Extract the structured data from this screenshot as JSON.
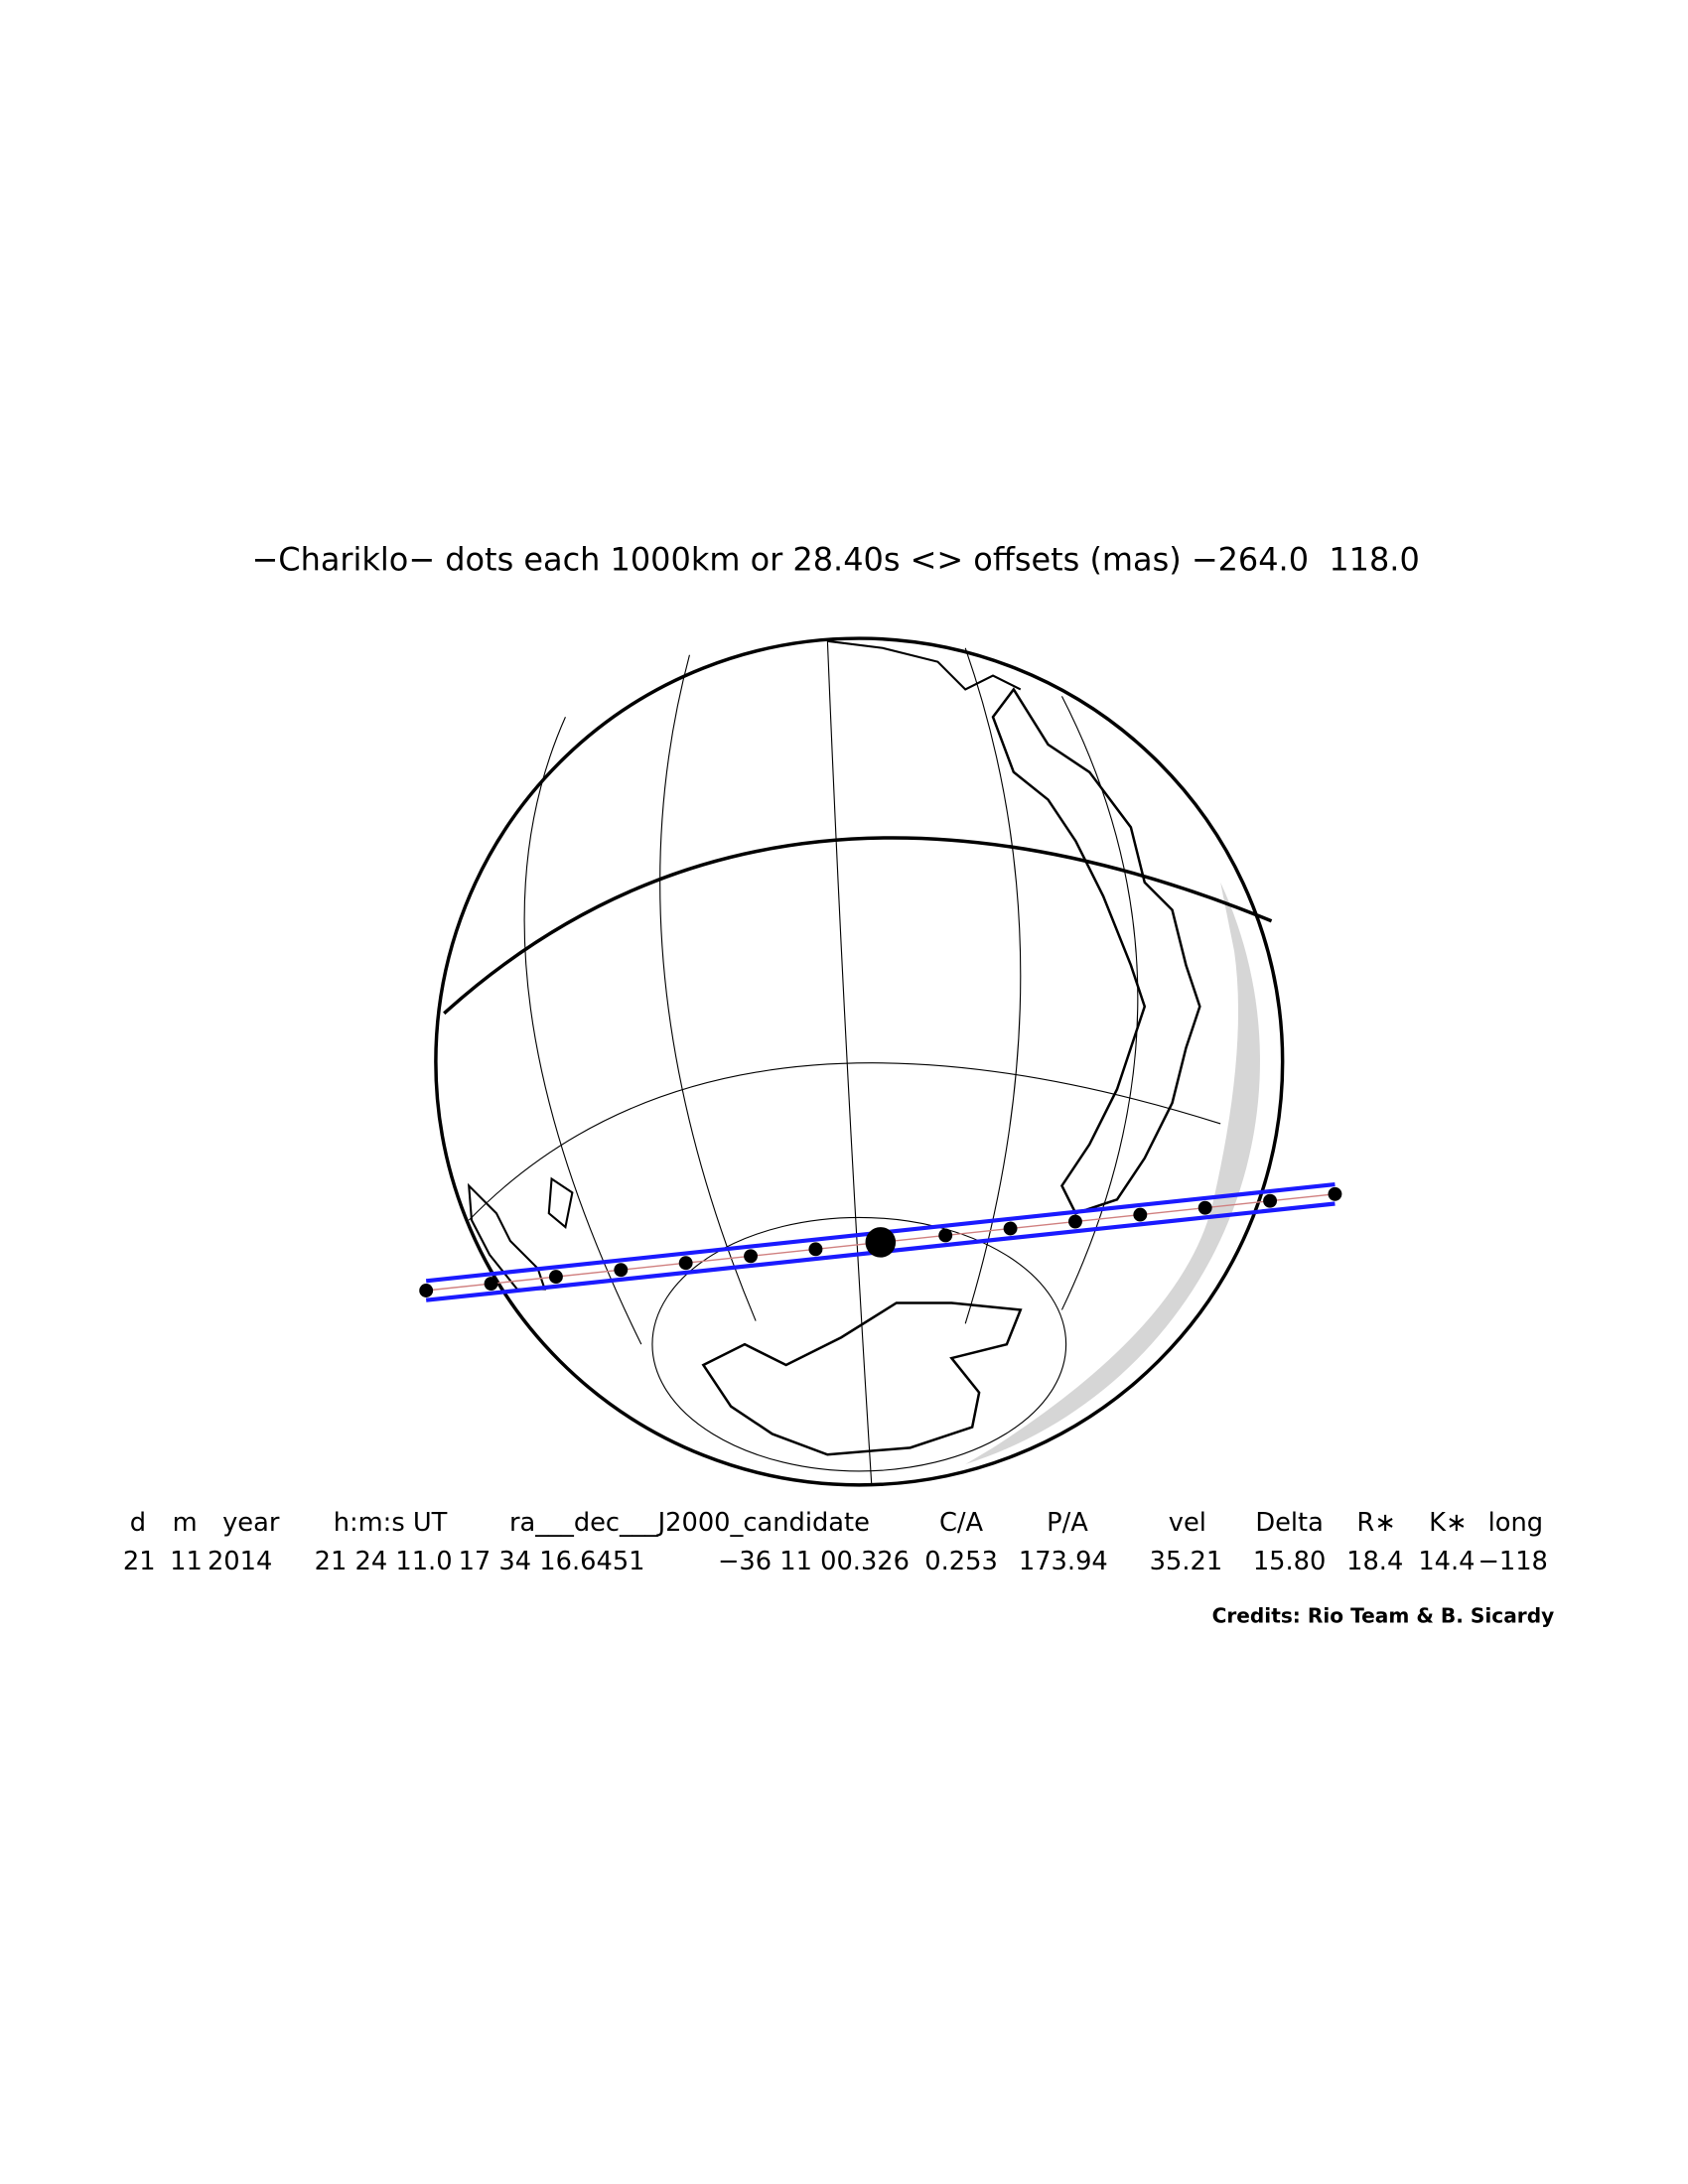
{
  "title": "−Chariklo− dots each 1000km or 28.40s <> offsets (mas) −264.0  118.0",
  "table": {
    "headers": [
      "d",
      "m",
      "year",
      "h:m:s UT",
      "ra___dec___J2000_candidate",
      "C/A",
      "P/A",
      "vel",
      "Delta",
      "R∗",
      "K∗",
      "long"
    ],
    "rows": [
      [
        "21",
        "11",
        "2014",
        "21 24 11.0",
        "17 34 16.6451",
        "−36 11 00.326",
        "0.253",
        "173.94",
        "35.21",
        "15.80",
        "18.4",
        "14.4",
        "−118"
      ]
    ]
  },
  "credits": "Credits: Rio Team & B. Sicardy"
}
